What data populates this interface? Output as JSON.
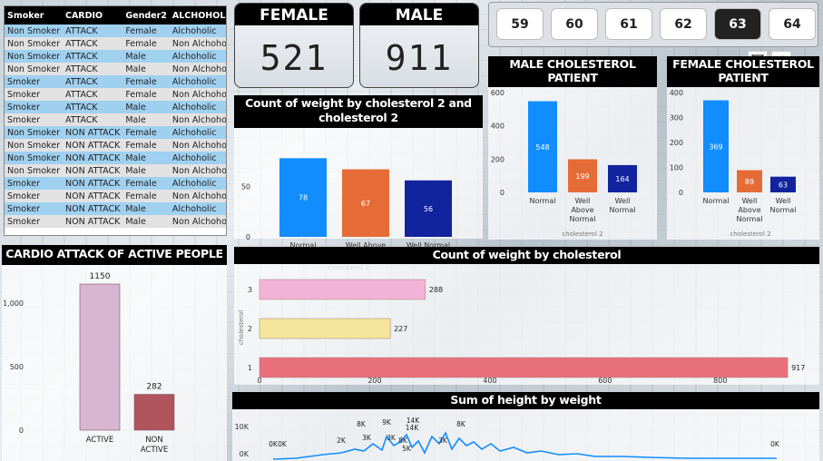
{
  "table": {
    "headers": [
      "Smoker",
      "CARDIO",
      "Gender2",
      "ALCHOHOLER"
    ],
    "rows": [
      [
        "Non Smoker",
        "ATTACK",
        "Female",
        "Alchoholic"
      ],
      [
        "Non Smoker",
        "ATTACK",
        "Female",
        "Non Alchoholi"
      ],
      [
        "Non Smoker",
        "ATTACK",
        "Male",
        "Alchoholic"
      ],
      [
        "Non Smoker",
        "ATTACK",
        "Male",
        "Non Alchoholi"
      ],
      [
        "Smoker",
        "ATTACK",
        "Female",
        "Alchoholic"
      ],
      [
        "Smoker",
        "ATTACK",
        "Female",
        "Non Alchoholi"
      ],
      [
        "Smoker",
        "ATTACK",
        "Male",
        "Alchoholic"
      ],
      [
        "Smoker",
        "ATTACK",
        "Male",
        "Non Alchoholi"
      ],
      [
        "Non Smoker",
        "NON ATTACK",
        "Female",
        "Alchoholic"
      ],
      [
        "Non Smoker",
        "NON ATTACK",
        "Female",
        "Non Alchoholi"
      ],
      [
        "Non Smoker",
        "NON ATTACK",
        "Male",
        "Alchoholic"
      ],
      [
        "Non Smoker",
        "NON ATTACK",
        "Male",
        "Non Alchoholi"
      ],
      [
        "Smoker",
        "NON ATTACK",
        "Female",
        "Alchoholic"
      ],
      [
        "Smoker",
        "NON ATTACK",
        "Female",
        "Non Alchoholi"
      ],
      [
        "Smoker",
        "NON ATTACK",
        "Male",
        "Alchoholic"
      ],
      [
        "Smoker",
        "NON ATTACK",
        "Male",
        "Non Alchoholi"
      ]
    ]
  },
  "cards": {
    "female": {
      "label": "FEMALE",
      "value": "521"
    },
    "male": {
      "label": "MALE",
      "value": "911"
    }
  },
  "slicer": {
    "values": [
      "59",
      "60",
      "61",
      "62",
      "63",
      "64"
    ],
    "selected": "63"
  },
  "toolbar": {
    "filter_icon": "filter-icon",
    "eraser_icon": "eraser-icon",
    "more_icon": "more-options-icon"
  },
  "chart_data": [
    {
      "id": "weight_by_chol2",
      "type": "bar",
      "title": "Count of weight by cholesterol 2 and cholesterol 2",
      "xlabel": "cholesterol 2",
      "ylabel": "",
      "categories": [
        "Normal",
        "Well Above Normal",
        "Well Normal"
      ],
      "values": [
        78,
        67,
        56
      ],
      "colors": [
        "#118dff",
        "#e66c37",
        "#12239e"
      ],
      "ylim": [
        0,
        90
      ],
      "yticks": [
        "0",
        "50"
      ]
    },
    {
      "id": "male_chol",
      "type": "bar",
      "title": "MALE CHOLESTEROL PATIENT",
      "xlabel": "cholesterol 2",
      "categories": [
        "Normal",
        "Well Above Normal",
        "Well Normal"
      ],
      "values": [
        548,
        199,
        164
      ],
      "colors": [
        "#118dff",
        "#e66c37",
        "#12239e"
      ],
      "ylim": [
        0,
        600
      ],
      "yticks": [
        "0",
        "200",
        "400",
        "600"
      ]
    },
    {
      "id": "female_chol",
      "type": "bar",
      "title": "FEMALE CHOLESTEROL PATIENT",
      "xlabel": "cholesterol 2",
      "categories": [
        "Normal",
        "Well Above Normal",
        "Well Normal"
      ],
      "values": [
        369,
        89,
        63
      ],
      "colors": [
        "#118dff",
        "#e66c37",
        "#12239e"
      ],
      "ylim": [
        0,
        400
      ],
      "yticks": [
        "0",
        "100",
        "200",
        "300",
        "400"
      ]
    },
    {
      "id": "cardio_active",
      "type": "bar",
      "title": "CARDIO ATTACK OF ACTIVE PEOPLE",
      "categories": [
        "ACTIVE",
        "NON ACTIVE"
      ],
      "values": [
        1150,
        282
      ],
      "colors": [
        "#d9b6cf",
        "#b0555c"
      ],
      "ylim": [
        0,
        1200
      ],
      "yticks": [
        "0",
        "500",
        "1,000"
      ]
    },
    {
      "id": "weight_by_chol",
      "type": "bar",
      "orientation": "horizontal",
      "title": "Count of weight by cholesterol",
      "ylabel": "cholesterol",
      "categories": [
        "3",
        "2",
        "1"
      ],
      "values": [
        288,
        227,
        917
      ],
      "colors": [
        "#f2b4d6",
        "#f4e59b",
        "#e8707b"
      ],
      "xlim": [
        0,
        920
      ],
      "xticks": [
        "0",
        "200",
        "400",
        "600",
        "800"
      ]
    },
    {
      "id": "height_by_weight",
      "type": "line",
      "title": "Sum of height by weight",
      "ylabel": "",
      "yticks": [
        "0K",
        "10K"
      ],
      "annotations": [
        "0K",
        "0K",
        "2K",
        "8K",
        "3K",
        "9K",
        "3K",
        "8K",
        "5K",
        "14K",
        "3K",
        "8K",
        "0K"
      ],
      "color": "#118dff"
    }
  ]
}
